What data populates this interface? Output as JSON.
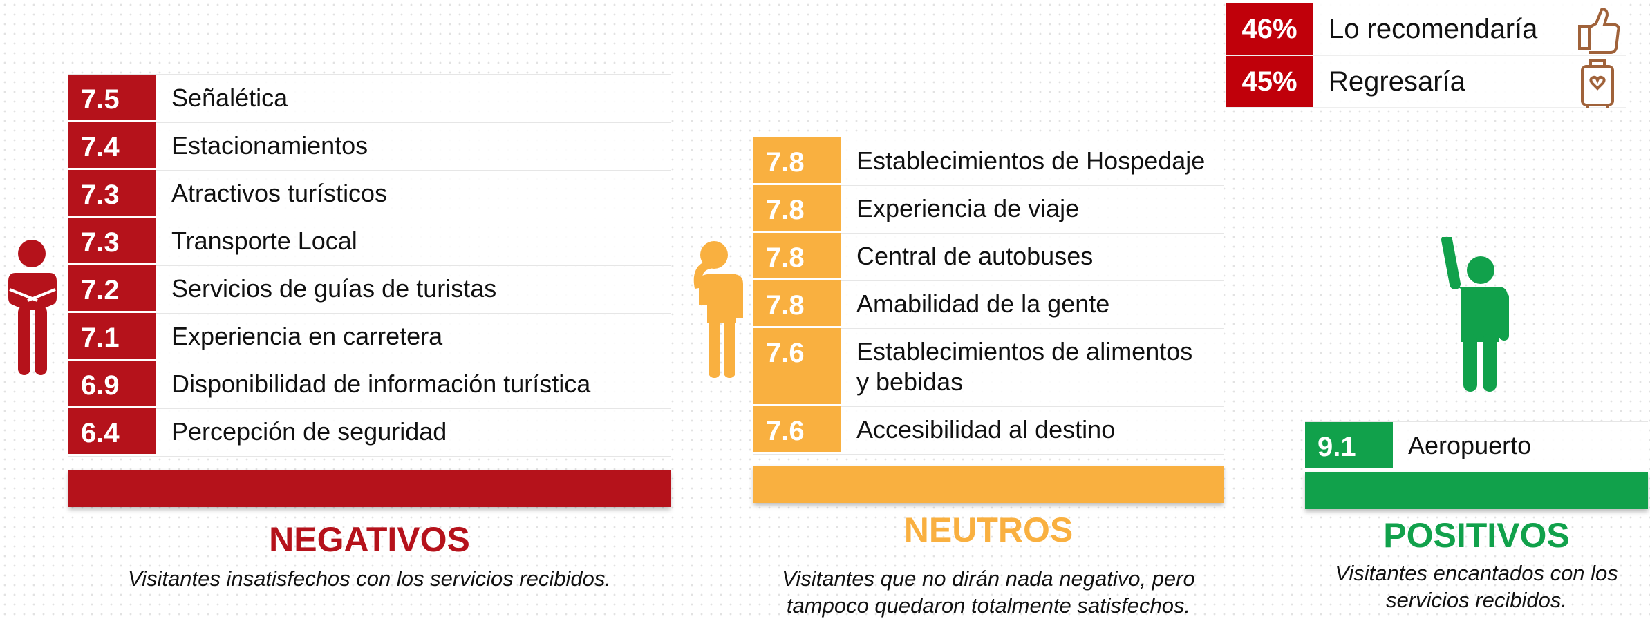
{
  "summary": [
    {
      "value": "46%",
      "label": "Lo recomendaría"
    },
    {
      "value": "45%",
      "label": "Regresaría"
    }
  ],
  "groups": [
    {
      "title": "NEGATIVOS",
      "description": "Visitantes insatisfechos con los servicios recibidos.",
      "items": [
        {
          "score": "7.5",
          "label": "Señalética"
        },
        {
          "score": "7.4",
          "label": "Estacionamientos"
        },
        {
          "score": "7.3",
          "label": "Atractivos turísticos"
        },
        {
          "score": "7.3",
          "label": "Transporte Local"
        },
        {
          "score": "7.2",
          "label": "Servicios de guías de turistas"
        },
        {
          "score": "7.1",
          "label": "Experiencia en carretera"
        },
        {
          "score": "6.9",
          "label": "Disponibilidad de información turística"
        },
        {
          "score": "6.4",
          "label": "Percepción de seguridad"
        }
      ]
    },
    {
      "title": "NEUTROS",
      "description": "Visitantes que no dirán nada negativo, pero tampoco quedaron totalmente satisfechos.",
      "items": [
        {
          "score": "7.8",
          "label": "Establecimientos de Hospedaje"
        },
        {
          "score": "7.8",
          "label": "Experiencia de viaje"
        },
        {
          "score": "7.8",
          "label": "Central de autobuses"
        },
        {
          "score": "7.8",
          "label": "Amabilidad de la gente"
        },
        {
          "score": "7.6",
          "label": "Establecimientos de alimentos y bebidas"
        },
        {
          "score": "7.6",
          "label": "Accesibilidad al destino"
        }
      ]
    },
    {
      "title": "POSITIVOS",
      "description": "Visitantes encantados con los servicios recibidos.",
      "items": [
        {
          "score": "9.1",
          "label": "Aeropuerto"
        }
      ]
    }
  ]
}
